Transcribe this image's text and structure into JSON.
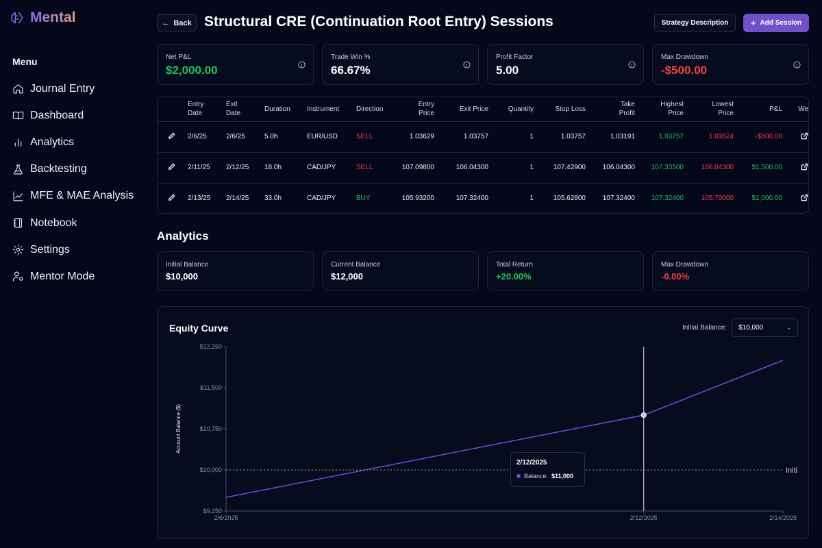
{
  "app": {
    "name": "Mental"
  },
  "sidebar": {
    "menu_title": "Menu",
    "items": [
      {
        "label": "Journal Entry",
        "icon": "home-icon"
      },
      {
        "label": "Dashboard",
        "icon": "book-icon"
      },
      {
        "label": "Analytics",
        "icon": "bar-chart-icon"
      },
      {
        "label": "Backtesting",
        "icon": "flask-icon"
      },
      {
        "label": "MFE & MAE Analysis",
        "icon": "line-chart-icon"
      },
      {
        "label": "Notebook",
        "icon": "notebook-icon"
      },
      {
        "label": "Settings",
        "icon": "gear-icon"
      },
      {
        "label": "Mentor Mode",
        "icon": "user-cog-icon"
      }
    ]
  },
  "header": {
    "back_label": "Back",
    "title": "Structural CRE (Continuation Root Entry) Sessions",
    "strategy_label": "Strategy Description",
    "add_label": "Add Session"
  },
  "stats": [
    {
      "label": "Net P&L",
      "value": "$2,000.00",
      "color": "#24c25a"
    },
    {
      "label": "Trade Win %",
      "value": "66.67%",
      "color": "#ffffff"
    },
    {
      "label": "Profit Factor",
      "value": "5.00",
      "color": "#ffffff"
    },
    {
      "label": "Max Drawdown",
      "value": "-$500.00",
      "color": "#ef4444"
    }
  ],
  "table": {
    "headers": {
      "entry_date": [
        "Entry",
        "Date"
      ],
      "exit_date": [
        "Exit",
        "Date"
      ],
      "duration": "Duration",
      "instrument": "Instrument",
      "direction": "Direction",
      "entry_price": [
        "Entry",
        "Price"
      ],
      "exit_price": "Exit Price",
      "quantity": "Quantity",
      "stop_loss": "Stop Loss",
      "take_profit": [
        "Take",
        "Profit"
      ],
      "highest_price": [
        "Highest",
        "Price"
      ],
      "lowest_price": [
        "Lowest",
        "Price"
      ],
      "pnl": "P&L",
      "weekly": "Weekly"
    },
    "rows": [
      {
        "entry_date": "2/6/25",
        "exit_date": "2/6/25",
        "duration": "5.0h",
        "instrument": "EUR/USD",
        "direction": "SELL",
        "entry_price": "1.03629",
        "exit_price": "1.03757",
        "quantity": "1",
        "stop_loss": "1.03757",
        "take_profit": "1.03191",
        "highest_price": "1.03757",
        "lowest_price": "1.03524",
        "pnl": "-$500.00"
      },
      {
        "entry_date": "2/11/25",
        "exit_date": "2/12/25",
        "duration": "18.0h",
        "instrument": "CAD/JPY",
        "direction": "SELL",
        "entry_price": "107.09800",
        "exit_price": "106.04300",
        "quantity": "1",
        "stop_loss": "107.42900",
        "take_profit": "106.04300",
        "highest_price": "107.33500",
        "lowest_price": "106.04300",
        "pnl": "$1,500.00"
      },
      {
        "entry_date": "2/13/25",
        "exit_date": "2/14/25",
        "duration": "33.0h",
        "instrument": "CAD/JPY",
        "direction": "BUY",
        "entry_price": "105.93200",
        "exit_price": "107.32400",
        "quantity": "1",
        "stop_loss": "105.62800",
        "take_profit": "107.32400",
        "highest_price": "107.32400",
        "lowest_price": "105.70000",
        "pnl": "$1,000.00"
      }
    ]
  },
  "analytics": {
    "title": "Analytics",
    "cards": [
      {
        "label": "Initial Balance",
        "value": "$10,000",
        "color": "#ffffff"
      },
      {
        "label": "Current Balance",
        "value": "$12,000",
        "color": "#ffffff"
      },
      {
        "label": "Total Return",
        "value": "+20.00%",
        "color": "#24c25a"
      },
      {
        "label": "Max Drawdown",
        "value": "-0.00%",
        "color": "#ef4444"
      }
    ]
  },
  "equity": {
    "title": "Equity Curve",
    "initial_balance_label": "Initial Balance:",
    "initial_balance_value": "$10,000",
    "tooltip": {
      "date": "2/12/2025",
      "label": "Balance:",
      "value": "$11,000"
    },
    "reference_label": "Initi"
  },
  "chart_data": {
    "type": "line",
    "title": "Equity Curve",
    "ylabel": "Account Balance ($)",
    "xlabel": "",
    "x_ticks": [
      "2/6/2025",
      "2/12/2025",
      "2/14/2025"
    ],
    "y_ticks": [
      "$9,250",
      "$10,000",
      "$10,750",
      "$11,500",
      "$12,250"
    ],
    "ylim": [
      9250,
      12250
    ],
    "reference_line": {
      "y": 10000,
      "label": "Initi"
    },
    "series": [
      {
        "x": [
          "2/6/2025",
          "2/12/2025",
          "2/14/2025"
        ],
        "values": [
          9500,
          11000,
          12000
        ],
        "color": "#6a4fe0"
      }
    ],
    "highlight": {
      "x": "2/12/2025",
      "y": 11000
    }
  }
}
